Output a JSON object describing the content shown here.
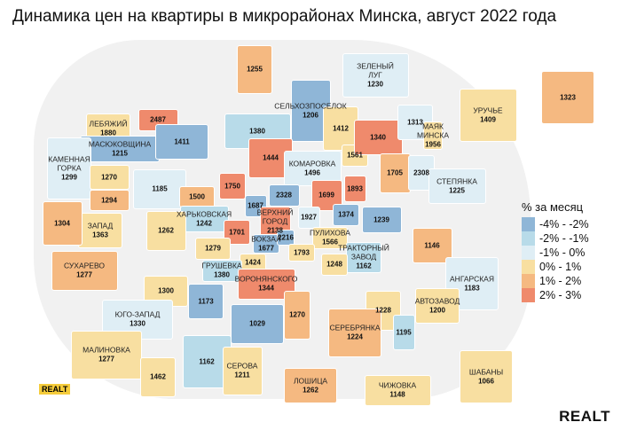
{
  "title": "Динамика цен на квартиры в микрорайонах Минска, август 2022 года",
  "legend": {
    "title": "% за месяц",
    "items": [
      {
        "label": "-4% - -2%",
        "color": "#8fb6d7"
      },
      {
        "label": "-2% - -1%",
        "color": "#b8dbe9"
      },
      {
        "label": "-1% - 0%",
        "color": "#dfeef5"
      },
      {
        "label": "0% - 1%",
        "color": "#f8dfa1"
      },
      {
        "label": "1% - 2%",
        "color": "#f5b981"
      },
      {
        "label": "2% - 3%",
        "color": "#ef8a6c"
      }
    ]
  },
  "districts": [
    {
      "name": "",
      "price": "1255",
      "bucket": 4
    },
    {
      "name": "ЗЕЛЕНЫЙ\nЛУГ",
      "price": "1230",
      "bucket": 2
    },
    {
      "name": "СЕЛЬХОЗПОСЕЛОК",
      "price": "1206",
      "bucket": 0
    },
    {
      "name": "",
      "price": "1380",
      "bucket": 1
    },
    {
      "name": "ЛЕБЯЖИЙ",
      "price": "1880",
      "bucket": 3
    },
    {
      "name": "",
      "price": "2487",
      "bucket": 5
    },
    {
      "name": "МАСЮКОВЩИНА",
      "price": "1215",
      "bucket": 0
    },
    {
      "name": "",
      "price": "1411",
      "bucket": 0
    },
    {
      "name": "КАМЕННАЯ\nГОРКА",
      "price": "1299",
      "bucket": 2
    },
    {
      "name": "",
      "price": "1270",
      "bucket": 3
    },
    {
      "name": "",
      "price": "1294",
      "bucket": 4
    },
    {
      "name": "",
      "price": "1185",
      "bucket": 2
    },
    {
      "name": "",
      "price": "1444",
      "bucket": 5
    },
    {
      "name": "КОМАРОВКА",
      "price": "1496",
      "bucket": 2
    },
    {
      "name": "",
      "price": "1412",
      "bucket": 3
    },
    {
      "name": "",
      "price": "1561",
      "bucket": 3
    },
    {
      "name": "",
      "price": "1340",
      "bucket": 5
    },
    {
      "name": "",
      "price": "1313",
      "bucket": 2
    },
    {
      "name": "МАЯК\nМИНСКА",
      "price": "1956",
      "bucket": 3
    },
    {
      "name": "УРУЧЬЕ",
      "price": "1409",
      "bucket": 3
    },
    {
      "name": "",
      "price": "1323",
      "bucket": 4
    },
    {
      "name": "",
      "price": "1705",
      "bucket": 4
    },
    {
      "name": "",
      "price": "2308",
      "bucket": 2
    },
    {
      "name": "СТЕПЯНКА",
      "price": "1225",
      "bucket": 2
    },
    {
      "name": "",
      "price": "1750",
      "bucket": 5
    },
    {
      "name": "",
      "price": "1500",
      "bucket": 4
    },
    {
      "name": "ХАРЬКОВСКАЯ",
      "price": "1242",
      "bucket": 1
    },
    {
      "name": "",
      "price": "1687",
      "bucket": 0
    },
    {
      "name": "ВЕРХНИЙ\nГОРОД",
      "price": "2138",
      "bucket": 5
    },
    {
      "name": "",
      "price": "2328",
      "bucket": 0
    },
    {
      "name": "",
      "price": "1699",
      "bucket": 5
    },
    {
      "name": "",
      "price": "1893",
      "bucket": 5
    },
    {
      "name": "",
      "price": "1374",
      "bucket": 0
    },
    {
      "name": "",
      "price": "1239",
      "bucket": 0
    },
    {
      "name": "",
      "price": "1927",
      "bucket": 2
    },
    {
      "name": "ПУЛИХОВА",
      "price": "1566",
      "bucket": 3
    },
    {
      "name": "",
      "price": "1701",
      "bucket": 5
    },
    {
      "name": "ВОКЗАЛ",
      "price": "1677",
      "bucket": 0
    },
    {
      "name": "",
      "price": "2216",
      "bucket": 0
    },
    {
      "name": "",
      "price": "1793",
      "bucket": 3
    },
    {
      "name": "",
      "price": "1424",
      "bucket": 3
    },
    {
      "name": "ГРУШЕВКА",
      "price": "1380",
      "bucket": 1
    },
    {
      "name": "",
      "price": "1279",
      "bucket": 3
    },
    {
      "name": "ВОРОНЯНСКОГО",
      "price": "1344",
      "bucket": 5
    },
    {
      "name": "ТРАКТОРНЫЙ\nЗАВОД",
      "price": "1162",
      "bucket": 1
    },
    {
      "name": "",
      "price": "1248",
      "bucket": 3
    },
    {
      "name": "",
      "price": "1146",
      "bucket": 4
    },
    {
      "name": "АНГАРСКАЯ",
      "price": "1183",
      "bucket": 2
    },
    {
      "name": "АВТОЗАВОД",
      "price": "1200",
      "bucket": 3
    },
    {
      "name": "",
      "price": "1228",
      "bucket": 3
    },
    {
      "name": "",
      "price": "1195",
      "bucket": 1
    },
    {
      "name": "СЕРЕБРЯНКА",
      "price": "1224",
      "bucket": 4
    },
    {
      "name": "",
      "price": "1270",
      "bucket": 4
    },
    {
      "name": "",
      "price": "1029",
      "bucket": 0
    },
    {
      "name": "",
      "price": "1173",
      "bucket": 0
    },
    {
      "name": "",
      "price": "1300",
      "bucket": 3
    },
    {
      "name": "ЮГО-ЗАПАД",
      "price": "1330",
      "bucket": 2
    },
    {
      "name": "СУХАРЕВО",
      "price": "1277",
      "bucket": 4
    },
    {
      "name": "ЗАПАД",
      "price": "1363",
      "bucket": 3
    },
    {
      "name": "",
      "price": "1304",
      "bucket": 4
    },
    {
      "name": "",
      "price": "1262",
      "bucket": 3
    },
    {
      "name": "МАЛИНОВКА",
      "price": "1277",
      "bucket": 3
    },
    {
      "name": "",
      "price": "1462",
      "bucket": 3
    },
    {
      "name": "",
      "price": "1162",
      "bucket": 1
    },
    {
      "name": "СЕРОВА",
      "price": "1211",
      "bucket": 3
    },
    {
      "name": "ЛОШИЦА",
      "price": "1262",
      "bucket": 4
    },
    {
      "name": "ЧИЖОВКА",
      "price": "1148",
      "bucket": 3
    },
    {
      "name": "ШАБАНЫ",
      "price": "1066",
      "bucket": 3
    }
  ],
  "logos": {
    "small": "REALT",
    "big": "REALT"
  }
}
